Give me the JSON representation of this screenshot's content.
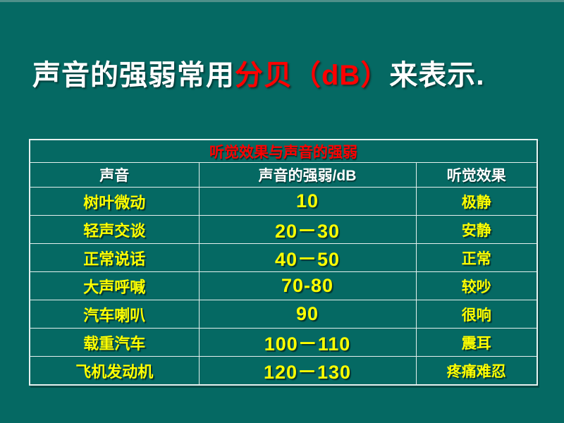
{
  "slide": {
    "title": {
      "prefix": "声音的强弱常用",
      "highlight": "分贝（dB）",
      "suffix": "来表示."
    }
  },
  "table": {
    "caption": "听觉效果与声音的强弱",
    "columns": [
      "声音",
      "声音的强弱/dB",
      "听觉效果"
    ],
    "rows": [
      [
        "树叶微动",
        "10",
        "极静"
      ],
      [
        "轻声交谈",
        "20－30",
        "安静"
      ],
      [
        "正常说话",
        "40－50",
        "正常"
      ],
      [
        "大声呼喊",
        "70-80",
        "较吵"
      ],
      [
        "汽车喇叭",
        "90",
        "很响"
      ],
      [
        "载重汽车",
        "100－110",
        "震耳"
      ],
      [
        "飞机发动机",
        "120－130",
        "疼痛难忍"
      ]
    ]
  },
  "colors": {
    "background": "#056963",
    "accent_red": "#ff0000",
    "cell_text_yellow": "#ffff00",
    "heading_text_white": "#ffffff",
    "table_border": "#e6f1ef"
  }
}
